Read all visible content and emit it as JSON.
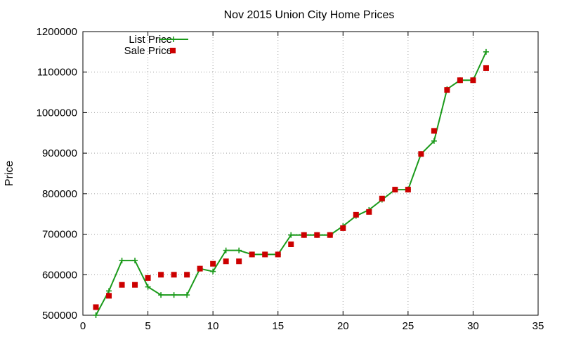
{
  "chart_data": {
    "type": "line",
    "title": "Nov 2015 Union City Home Prices",
    "xlabel": "",
    "ylabel": "Price",
    "xlim": [
      0,
      35
    ],
    "ylim": [
      500000,
      1200000
    ],
    "x_ticks": [
      "0",
      "5",
      "10",
      "15",
      "20",
      "25",
      "30",
      "35"
    ],
    "y_ticks": [
      "500000",
      "600000",
      "700000",
      "800000",
      "900000",
      "1000000",
      "1100000",
      "1200000"
    ],
    "grid": true,
    "legend_position": "top-left",
    "series": [
      {
        "name": "List Price",
        "style": "line-with-plus-markers",
        "color": "#1a9a1a",
        "x": [
          1,
          2,
          3,
          4,
          5,
          6,
          7,
          8,
          9,
          10,
          11,
          12,
          13,
          14,
          15,
          16,
          17,
          18,
          19,
          20,
          21,
          22,
          23,
          24,
          25,
          26,
          27,
          28,
          29,
          30,
          31
        ],
        "y": [
          500000,
          560000,
          635000,
          635000,
          570000,
          550000,
          550000,
          550000,
          615000,
          608000,
          660000,
          660000,
          650000,
          650000,
          650000,
          698000,
          698000,
          698000,
          698000,
          720000,
          745000,
          760000,
          785000,
          810000,
          810000,
          898000,
          930000,
          1058000,
          1080000,
          1080000,
          1150000
        ]
      },
      {
        "name": "Sale Price",
        "style": "square-markers",
        "color": "#cc0000",
        "x": [
          1,
          2,
          3,
          4,
          5,
          6,
          7,
          8,
          9,
          10,
          11,
          12,
          13,
          14,
          15,
          16,
          17,
          18,
          19,
          20,
          21,
          22,
          23,
          24,
          25,
          26,
          27,
          28,
          29,
          30,
          31
        ],
        "y": [
          520000,
          548000,
          575000,
          575000,
          592000,
          600000,
          600000,
          600000,
          615000,
          627000,
          633000,
          633000,
          650000,
          650000,
          650000,
          675000,
          698000,
          698000,
          698000,
          715000,
          748000,
          755000,
          788000,
          810000,
          810000,
          898000,
          955000,
          1056000,
          1080000,
          1080000,
          1110000
        ]
      }
    ]
  }
}
